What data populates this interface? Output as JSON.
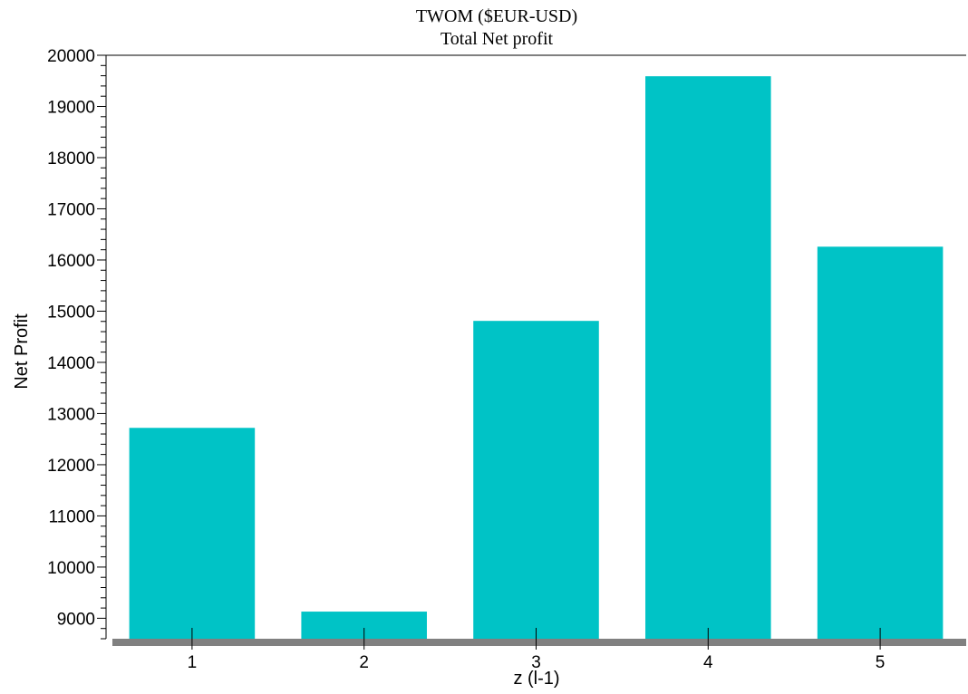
{
  "chart_data": {
    "type": "bar",
    "title": "TWOM ($EUR-USD)",
    "subtitle": "Total Net profit",
    "xlabel": "z (l-1)",
    "ylabel": "Net Profit",
    "categories": [
      "1",
      "2",
      "3",
      "4",
      "5"
    ],
    "values": [
      12720,
      9130,
      14810,
      19590,
      16260
    ],
    "ylim": [
      8600,
      20000
    ],
    "yticks": [
      9000,
      10000,
      11000,
      12000,
      13000,
      14000,
      15000,
      16000,
      17000,
      18000,
      19000,
      20000
    ],
    "ytick_labels": [
      "9000",
      "10000",
      "11000",
      "12000",
      "13000",
      "14000",
      "15000",
      "16000",
      "17000",
      "18000",
      "19000",
      "20000"
    ],
    "grid": false,
    "legend": "none",
    "bar_color": "#00C3C6",
    "baseline_color": "#808080"
  }
}
